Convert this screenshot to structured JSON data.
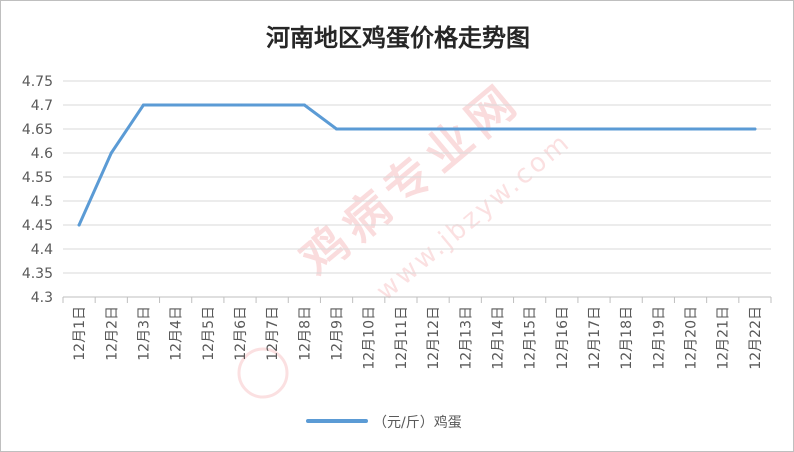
{
  "chart_data": {
    "type": "line",
    "title": "河南地区鸡蛋价格走势图",
    "categories": [
      "12月1日",
      "12月2日",
      "12月3日",
      "12月4日",
      "12月5日",
      "12月6日",
      "12月7日",
      "12月8日",
      "12月9日",
      "12月10日",
      "12月11日",
      "12月12日",
      "12月13日",
      "12月14日",
      "12月15日",
      "12月16日",
      "12月17日",
      "12月18日",
      "12月19日",
      "12月20日",
      "12月21日",
      "12月22日"
    ],
    "series": [
      {
        "name": "（元/斤）鸡蛋",
        "color": "#5B9BD5",
        "values": [
          4.45,
          4.6,
          4.7,
          4.7,
          4.7,
          4.7,
          4.7,
          4.7,
          4.65,
          4.65,
          4.65,
          4.65,
          4.65,
          4.65,
          4.65,
          4.65,
          4.65,
          4.65,
          4.65,
          4.65,
          4.65,
          4.65
        ]
      }
    ],
    "ylim": [
      4.3,
      4.75
    ],
    "yticks": [
      "4.3",
      "4.35",
      "4.4",
      "4.45",
      "4.5",
      "4.55",
      "4.6",
      "4.65",
      "4.7",
      "4.75"
    ],
    "grid": true,
    "legend": "bottom"
  },
  "watermark": {
    "name": "鸡病专业网",
    "url": "www.jbzyw.com",
    "color": "#E0252B"
  }
}
